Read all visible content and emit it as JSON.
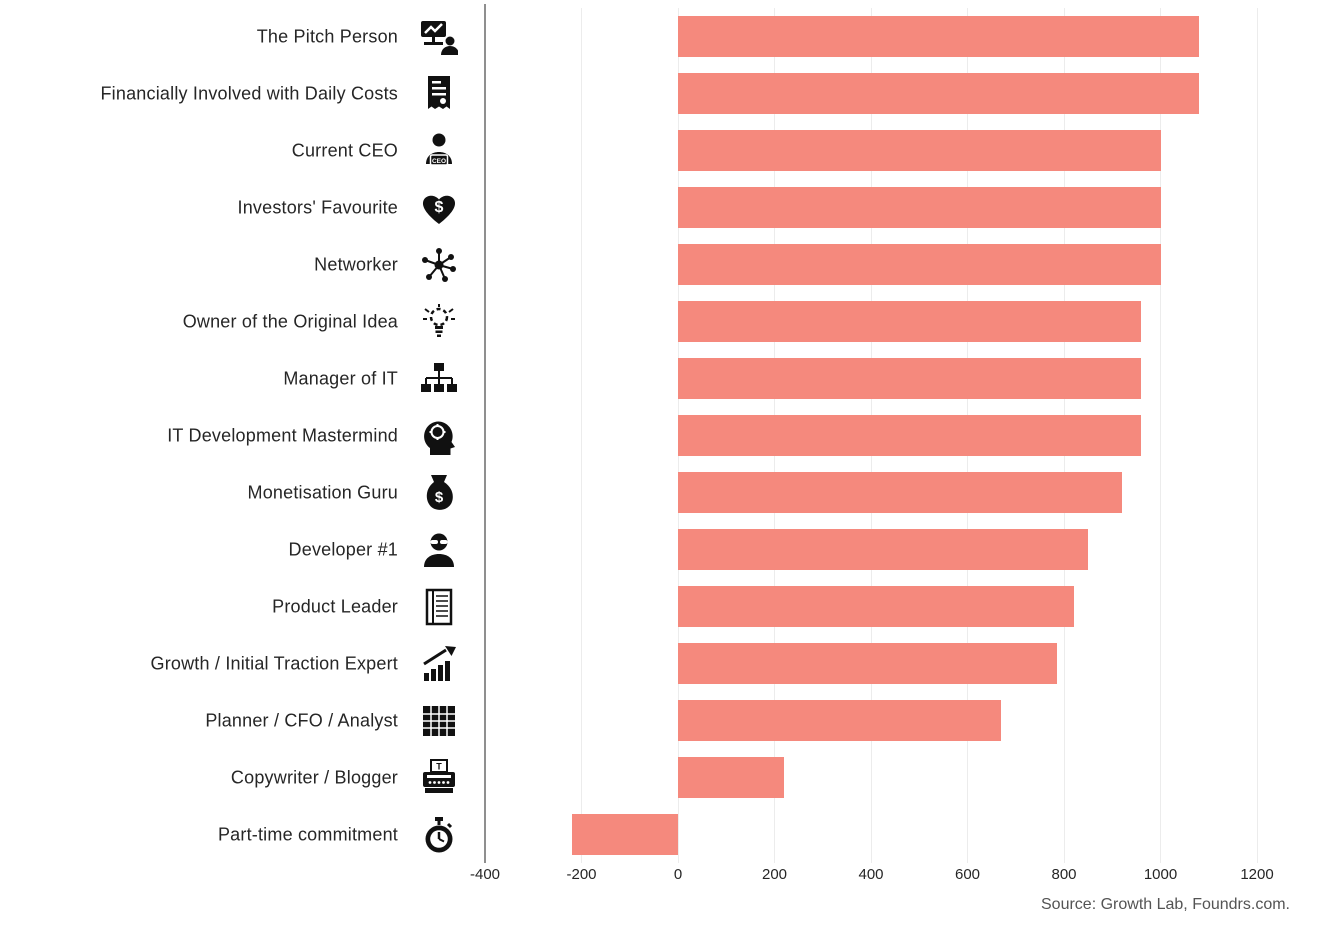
{
  "chart_data": {
    "type": "bar",
    "orientation": "horizontal",
    "title": "",
    "xlabel": "",
    "ylabel": "",
    "categories": [
      "The Pitch Person",
      "Financially Involved with Daily Costs",
      "Current CEO",
      "Investors' Favourite",
      "Networker",
      "Owner of the Original Idea",
      "Manager of IT",
      "IT Development Mastermind",
      "Monetisation Guru",
      "Developer #1",
      "Product Leader",
      "Growth / Initial Traction Expert",
      "Planner / CFO / Analyst",
      "Copywriter / Blogger",
      "Part-time commitment"
    ],
    "values": [
      1080,
      1080,
      1000,
      1000,
      1000,
      960,
      960,
      960,
      920,
      850,
      820,
      785,
      670,
      220,
      -220
    ],
    "icons": [
      "presentation-person-icon",
      "receipt-icon",
      "ceo-badge-icon",
      "heart-dollar-icon",
      "network-icon",
      "lightbulb-icon",
      "org-chart-icon",
      "mastermind-head-icon",
      "money-bag-icon",
      "developer-icon",
      "notebook-icon",
      "growth-chart-icon",
      "spreadsheet-icon",
      "typewriter-icon",
      "stopwatch-icon"
    ],
    "xlim": [
      -400,
      1200
    ],
    "ticks": [
      -400,
      -200,
      0,
      200,
      400,
      600,
      800,
      1000,
      1200
    ],
    "tick_labels": [
      "-400",
      "-200",
      "0",
      "200",
      "400",
      "600",
      "800",
      "1000",
      "1200"
    ],
    "bar_color": "#F5897D",
    "gridline_color": "#ececec",
    "axis_line_color": "#8f8f8f",
    "grid": true,
    "legend": "none",
    "source": "Source: Growth Lab, Foundrs.com."
  }
}
